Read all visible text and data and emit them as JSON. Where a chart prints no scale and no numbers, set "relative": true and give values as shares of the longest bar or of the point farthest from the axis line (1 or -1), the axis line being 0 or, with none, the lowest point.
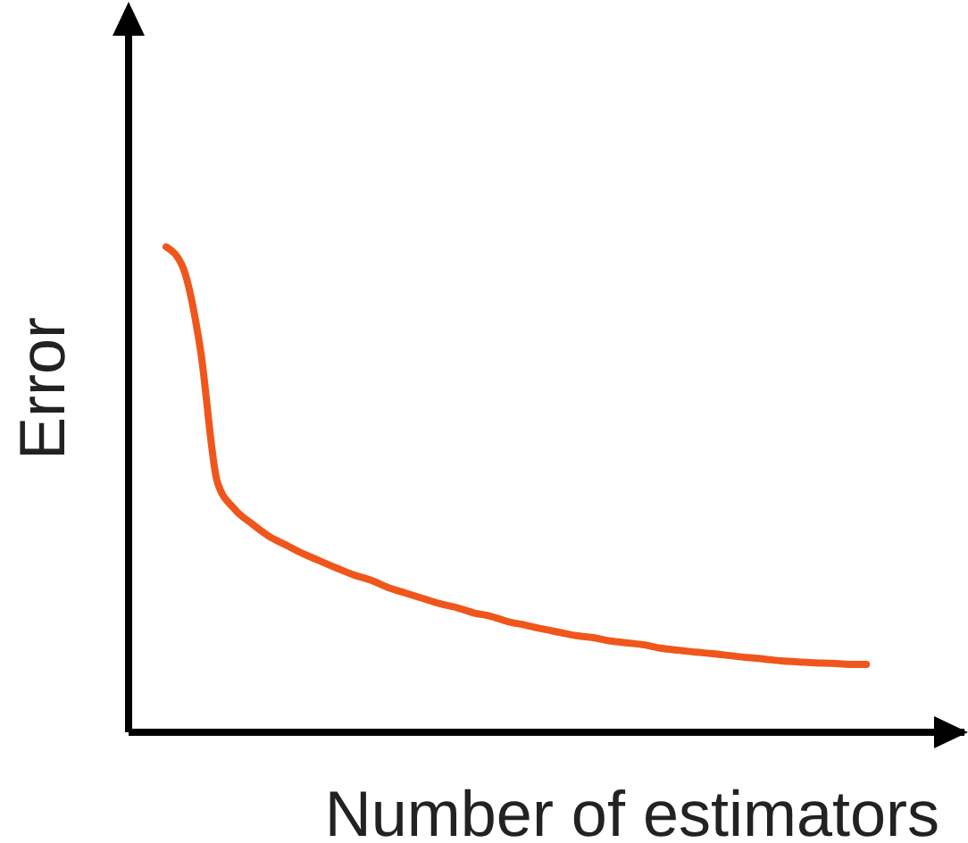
{
  "chart_data": {
    "type": "line",
    "relative": true,
    "xlabel": "Number of estimators",
    "ylabel": "Error",
    "marker": "none",
    "grid": false,
    "legend": false,
    "categories": [
      null,
      null,
      null,
      null,
      null,
      null,
      null,
      null,
      null,
      null,
      null,
      null,
      null,
      null,
      null,
      null,
      null,
      null,
      null,
      null,
      null,
      null,
      null,
      null,
      null,
      null,
      null,
      null,
      null,
      null,
      null,
      null,
      null,
      null,
      null,
      null,
      null,
      null,
      null,
      null,
      null,
      null
    ],
    "series": [
      {
        "color": "#f0561c",
        "values": [
          1.0,
          0.956,
          0.79,
          0.515,
          0.46,
          0.43,
          0.404,
          0.386,
          0.368,
          0.353,
          0.338,
          0.324,
          0.313,
          0.298,
          0.287,
          0.276,
          0.265,
          0.257,
          0.246,
          0.239,
          0.228,
          0.221,
          0.213,
          0.206,
          0.199,
          0.195,
          0.188,
          0.184,
          0.18,
          0.173,
          0.169,
          0.165,
          0.162,
          0.158,
          0.154,
          0.151,
          0.147,
          0.145,
          0.143,
          0.142,
          0.14,
          0.14
        ]
      }
    ]
  }
}
